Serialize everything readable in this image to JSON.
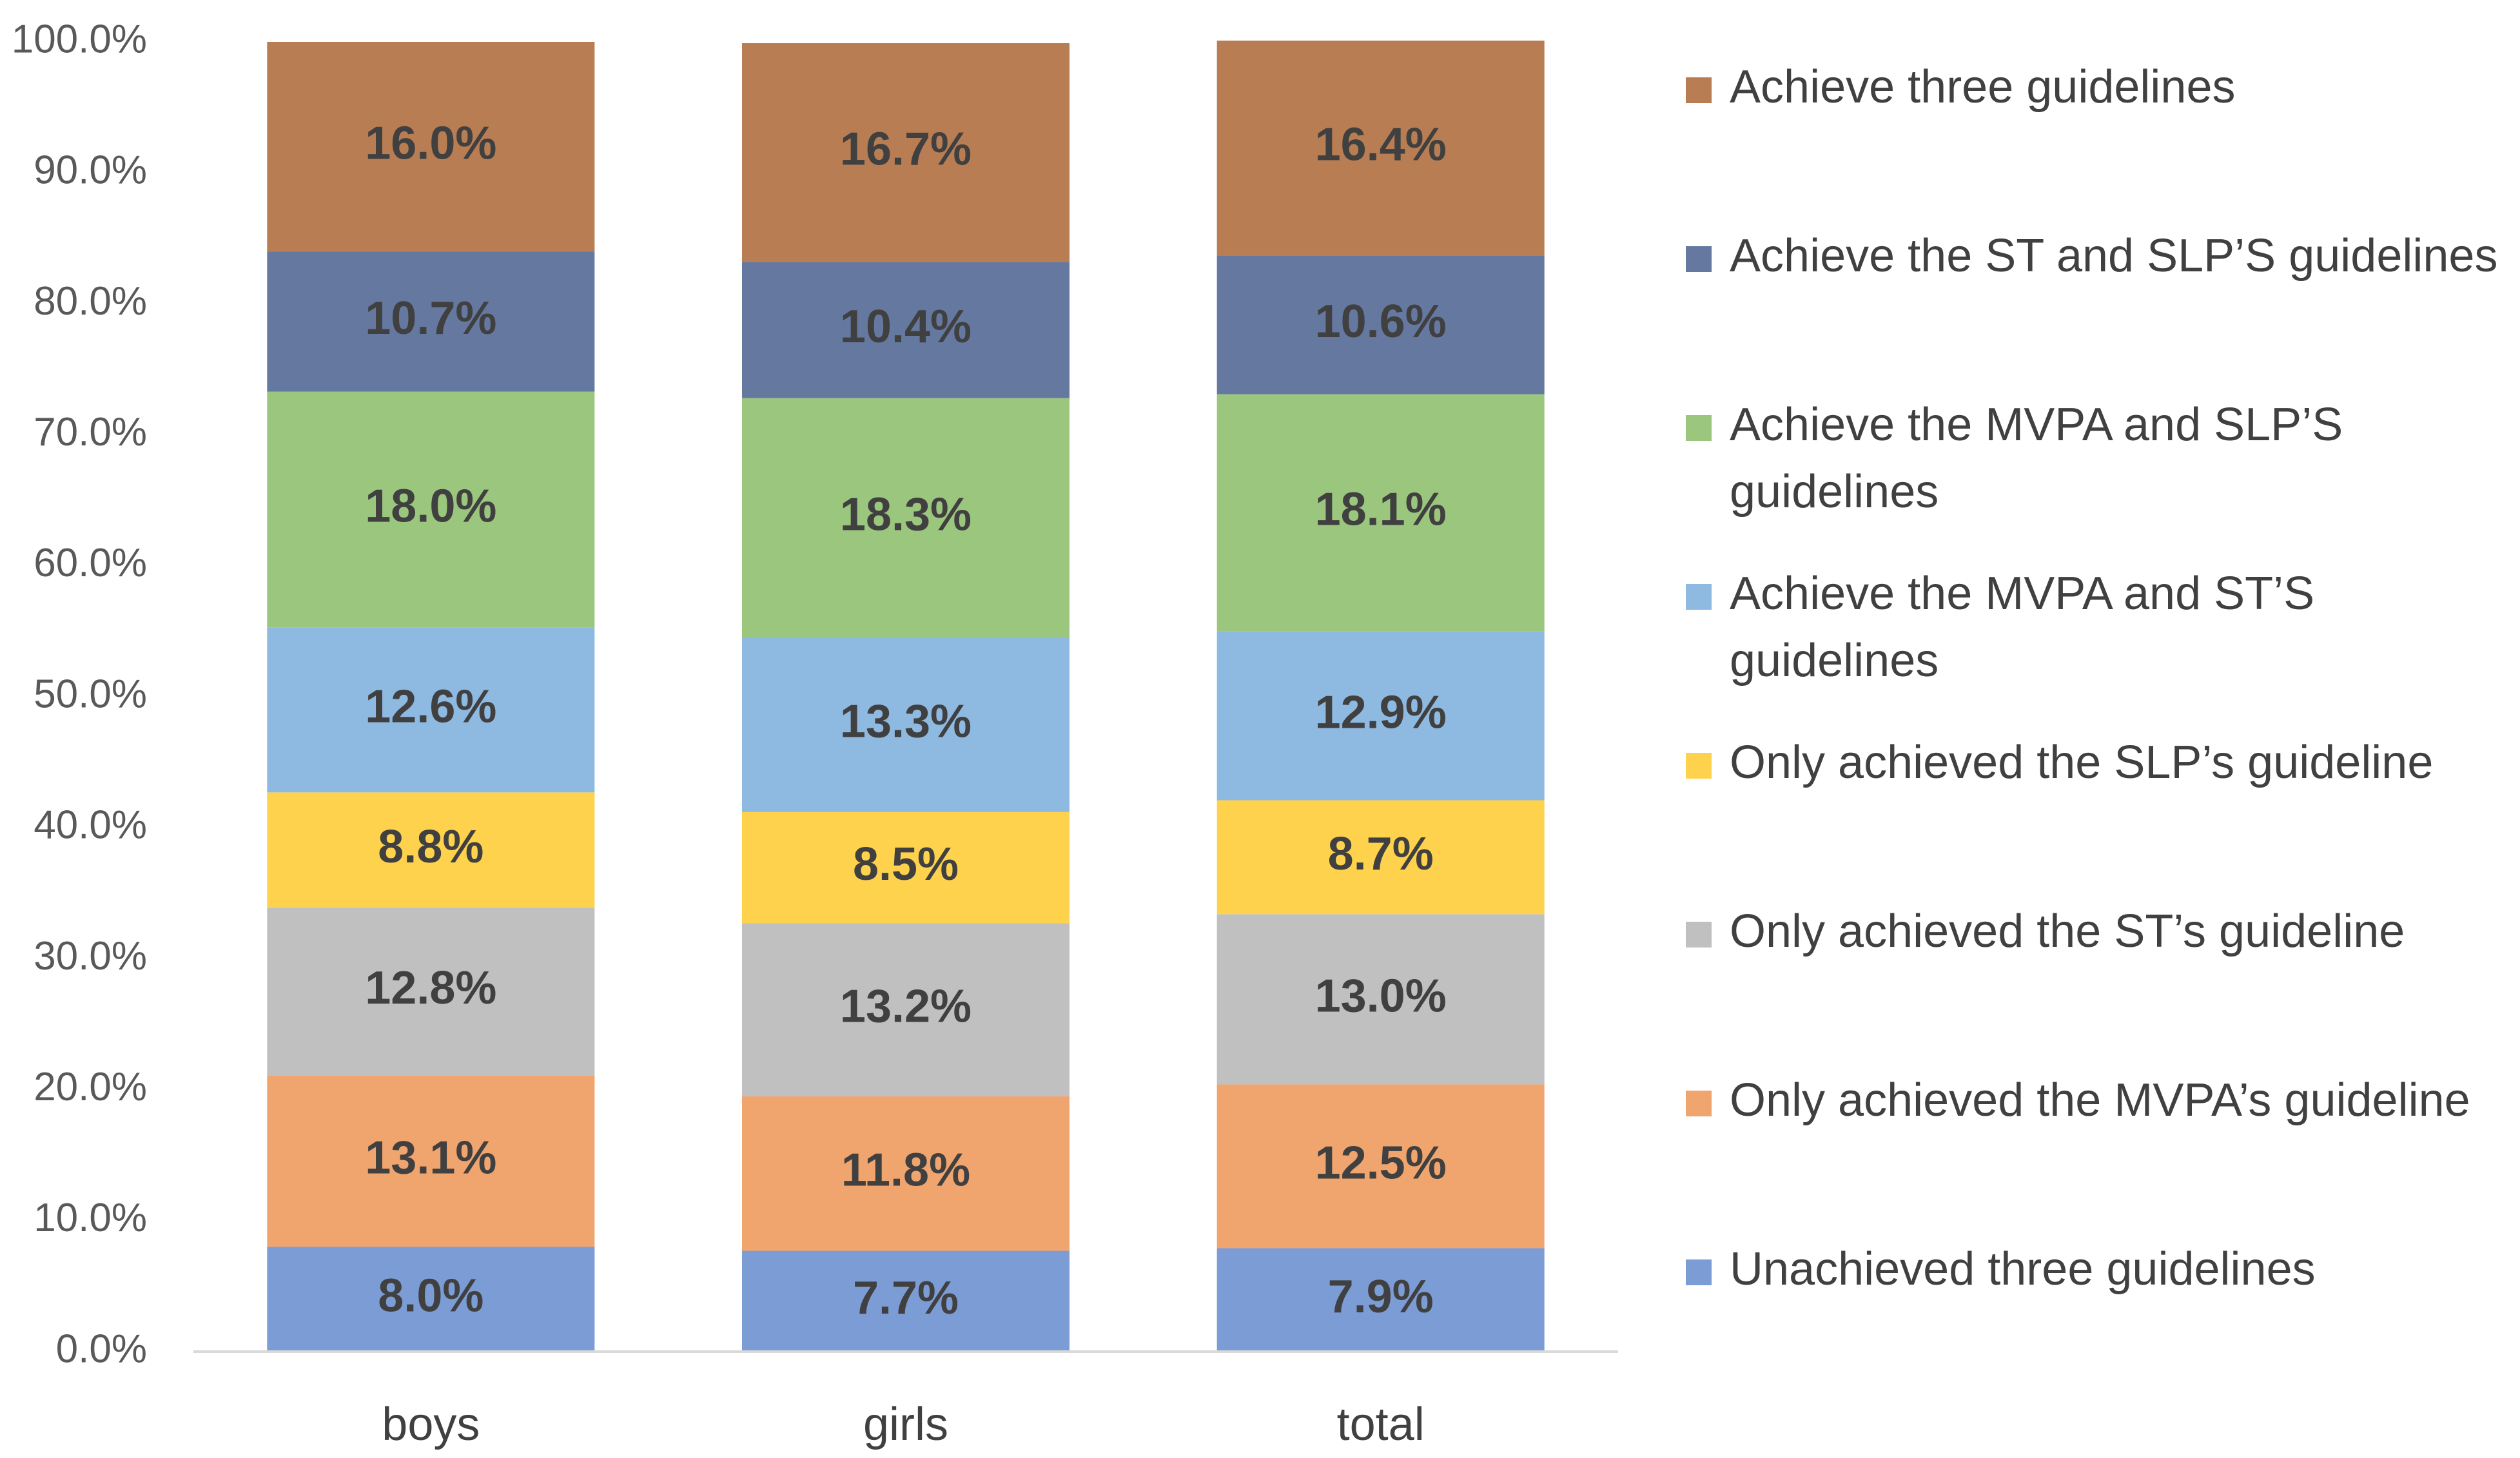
{
  "chart_data": {
    "type": "bar",
    "stacked": true,
    "title": "",
    "xlabel": "",
    "ylabel": "",
    "ylim": [
      0,
      100
    ],
    "yticks": [
      "0.0%",
      "10.0%",
      "20.0%",
      "30.0%",
      "40.0%",
      "50.0%",
      "60.0%",
      "70.0%",
      "80.0%",
      "90.0%",
      "100.0%"
    ],
    "grid": false,
    "legend_position": "right",
    "categories": [
      "boys",
      "girls",
      "total"
    ],
    "series": [
      {
        "name": "Unachieved three guidelines",
        "color": "#7c9cd6",
        "values": [
          8.0,
          7.7,
          7.9
        ],
        "labels": [
          "8.0%",
          "7.7%",
          "7.9%"
        ]
      },
      {
        "name": "Only achieved the MVPA’s guideline",
        "color": "#f0a46e",
        "values": [
          13.1,
          11.8,
          12.5
        ],
        "labels": [
          "13.1%",
          "11.8%",
          "12.5%"
        ]
      },
      {
        "name": "Only achieved the ST’s guideline",
        "color": "#c0c0c0",
        "values": [
          12.8,
          13.2,
          13.0
        ],
        "labels": [
          "12.8%",
          "13.2%",
          "13.0%"
        ]
      },
      {
        "name": "Only achieved the SLP’s guideline",
        "color": "#ffd24d",
        "values": [
          8.8,
          8.5,
          8.7
        ],
        "labels": [
          "8.8%",
          "8.5%",
          "8.7%"
        ]
      },
      {
        "name": "Achieve the MVPA and ST’S guidelines",
        "legend_lines": [
          "Achieve the MVPA and ST’S",
          "guidelines"
        ],
        "color": "#8eb9e1",
        "values": [
          12.6,
          13.3,
          12.9
        ],
        "labels": [
          "12.6%",
          "13.3%",
          "12.9%"
        ]
      },
      {
        "name": "Achieve the MVPA and SLP’S guidelines",
        "legend_lines": [
          "Achieve the MVPA and SLP’S",
          "guidelines"
        ],
        "color": "#9bc67d",
        "values": [
          18.0,
          18.3,
          18.1
        ],
        "labels": [
          "18.0%",
          "18.3%",
          "18.1%"
        ]
      },
      {
        "name": "Achieve the ST and SLP’S guidelines",
        "color": "#6578a0",
        "values": [
          10.7,
          10.4,
          10.6
        ],
        "labels": [
          "10.7%",
          "10.4%",
          "10.6%"
        ]
      },
      {
        "name": "Achieve three guidelines",
        "color": "#b87d52",
        "values": [
          16.0,
          16.7,
          16.4
        ],
        "labels": [
          "16.0%",
          "16.7%",
          "16.4%"
        ]
      }
    ]
  }
}
